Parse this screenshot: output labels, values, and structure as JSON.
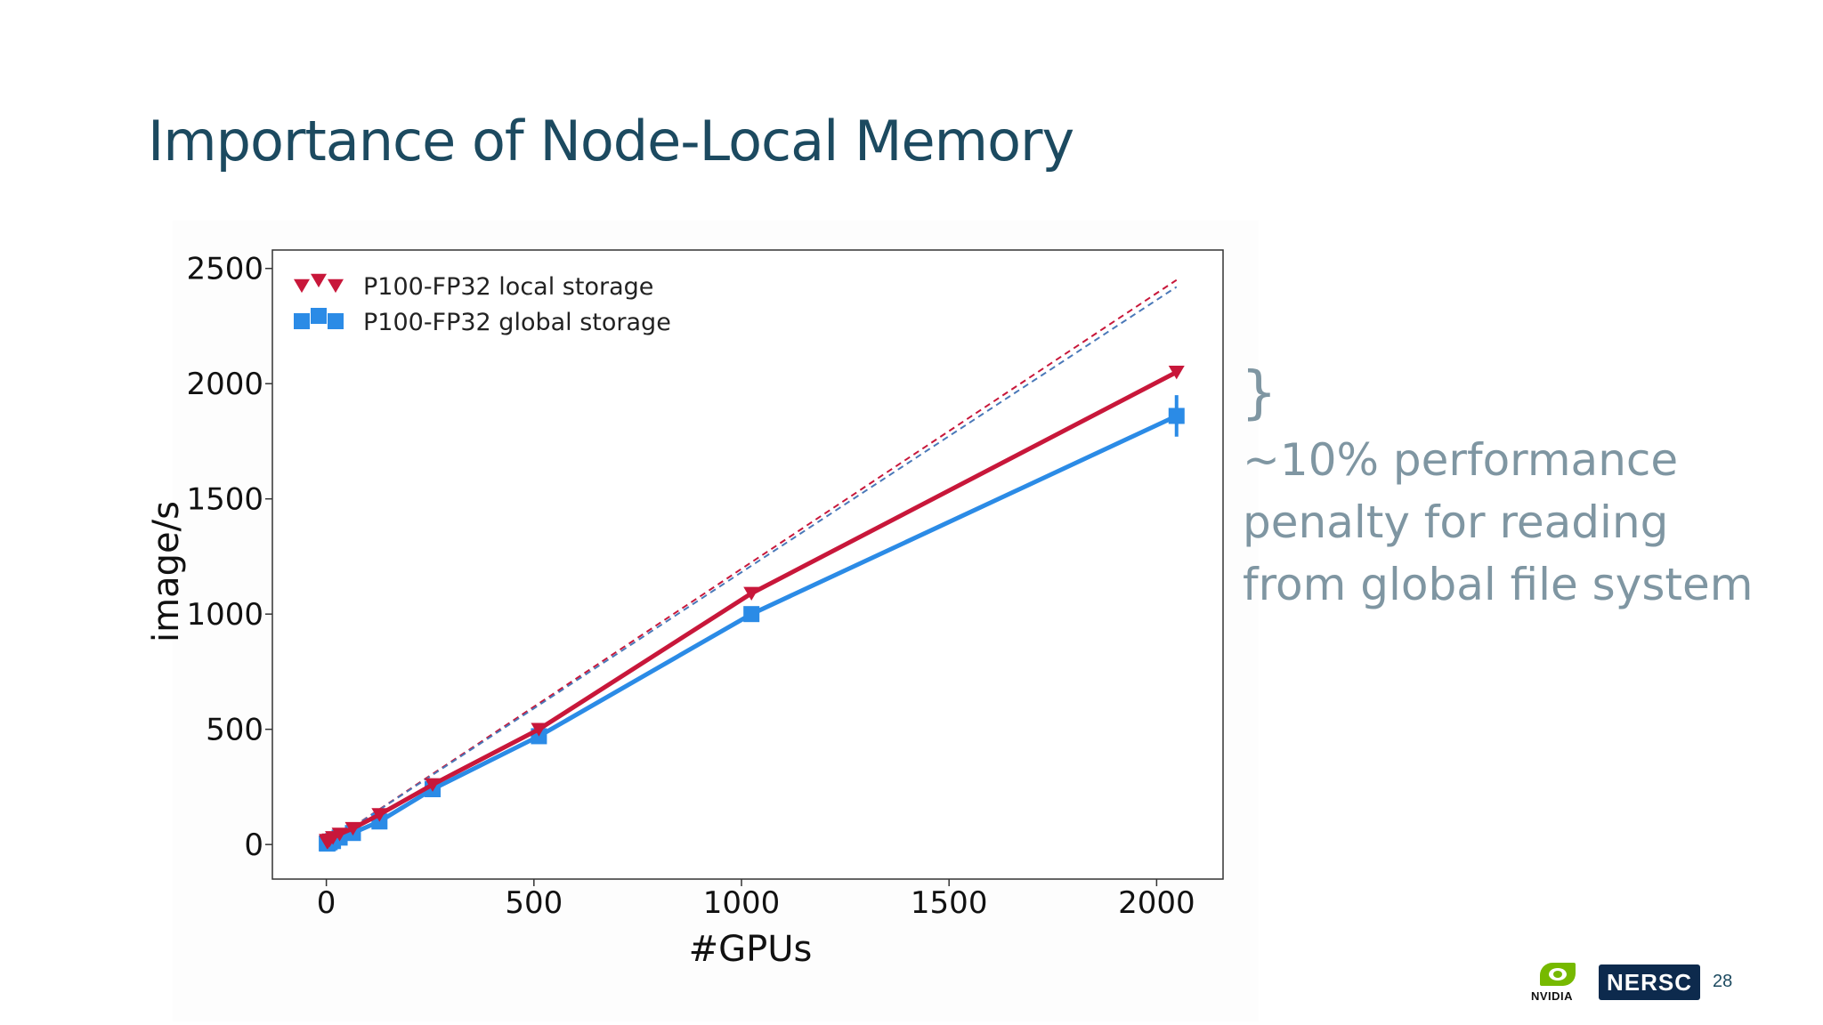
{
  "slide": {
    "title": "Importance of Node-Local Memory",
    "annotation": {
      "brace": "}",
      "lines": [
        "~10% performance",
        "penalty for reading",
        "from global file system"
      ]
    },
    "logos": {
      "nvidia": "NVIDIA",
      "nersc": "NERSC"
    },
    "page_number": "28"
  },
  "chart_data": {
    "type": "line",
    "xlabel": "#GPUs",
    "ylabel": "image/s",
    "xlim": [
      -130,
      2160
    ],
    "ylim": [
      -150,
      2580
    ],
    "xticks": [
      0,
      500,
      1000,
      1500,
      2000
    ],
    "yticks": [
      0,
      500,
      1000,
      1500,
      2000,
      2500
    ],
    "grid": false,
    "legend": "top-left",
    "series": [
      {
        "name": "P100-FP32 local storage",
        "color": "#c8173a",
        "marker": "triangle-down",
        "x": [
          1,
          2,
          4,
          8,
          16,
          32,
          64,
          128,
          256,
          512,
          1024,
          2048
        ],
        "y": [
          18,
          10,
          12,
          20,
          30,
          45,
          70,
          130,
          260,
          500,
          1090,
          2050
        ]
      },
      {
        "name": "P100-FP32 global storage",
        "color": "#2b8be6",
        "marker": "square",
        "x": [
          1,
          2,
          4,
          8,
          16,
          32,
          64,
          128,
          256,
          512,
          1024,
          2048
        ],
        "y": [
          5,
          4,
          6,
          10,
          15,
          30,
          50,
          100,
          240,
          470,
          1000,
          1860
        ],
        "error": [
          0,
          0,
          0,
          0,
          0,
          0,
          0,
          0,
          0,
          0,
          20,
          90
        ]
      }
    ],
    "ideal_lines": [
      {
        "color": "#c8173a",
        "x": [
          0,
          2048
        ],
        "y": [
          0,
          2450
        ],
        "style": "dashed"
      },
      {
        "color": "#4a78b8",
        "x": [
          0,
          2048
        ],
        "y": [
          0,
          2420
        ],
        "style": "dashed"
      }
    ]
  }
}
